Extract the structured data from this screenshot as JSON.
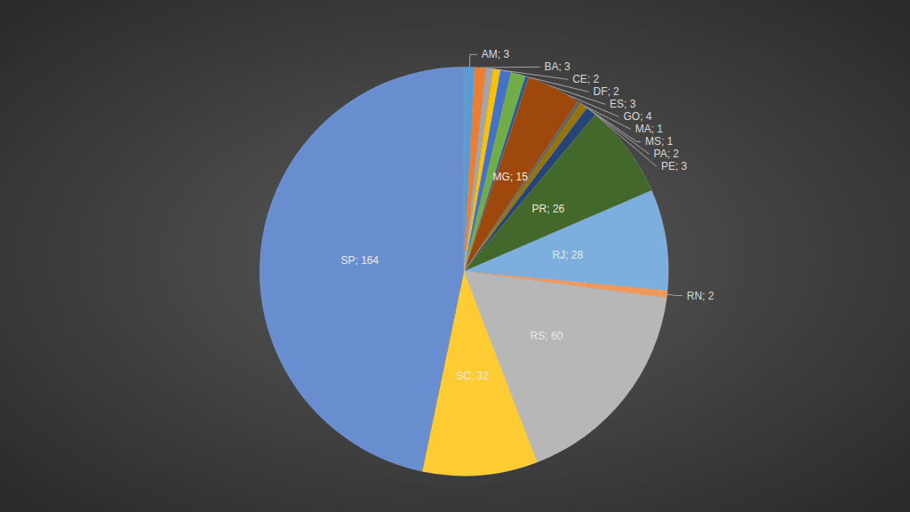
{
  "chart_data": {
    "type": "pie",
    "categories": [
      "AM",
      "BA",
      "CE",
      "DF",
      "ES",
      "GO",
      "MA",
      "MG",
      "MS",
      "PA",
      "PE",
      "PR",
      "RJ",
      "RN",
      "RS",
      "SC",
      "SP"
    ],
    "values": [
      3,
      3,
      2,
      2,
      3,
      4,
      1,
      15,
      1,
      2,
      3,
      26,
      28,
      2,
      60,
      32,
      164
    ],
    "value_labels": [
      "AM; 3",
      "BA; 3",
      "CE; 2",
      "DF; 2",
      "ES; 3",
      "GO; 4",
      "MA; 1",
      "MG; 15",
      "MS; 1",
      "PA; 2",
      "PE; 3",
      "PR; 26",
      "RJ; 28",
      "RN; 2",
      "RS; 60",
      "SC; 32",
      "SP; 164"
    ],
    "colors": [
      "#5b9bd5",
      "#ed7d31",
      "#a5a5a5",
      "#ffc000",
      "#4472c4",
      "#70ad47",
      "#255e91",
      "#9e480e",
      "#636363",
      "#997300",
      "#264478",
      "#43682b",
      "#7cafdd",
      "#f1975a",
      "#b7b7b7",
      "#ffcd33",
      "#698ed0"
    ],
    "data_labels": true
  }
}
